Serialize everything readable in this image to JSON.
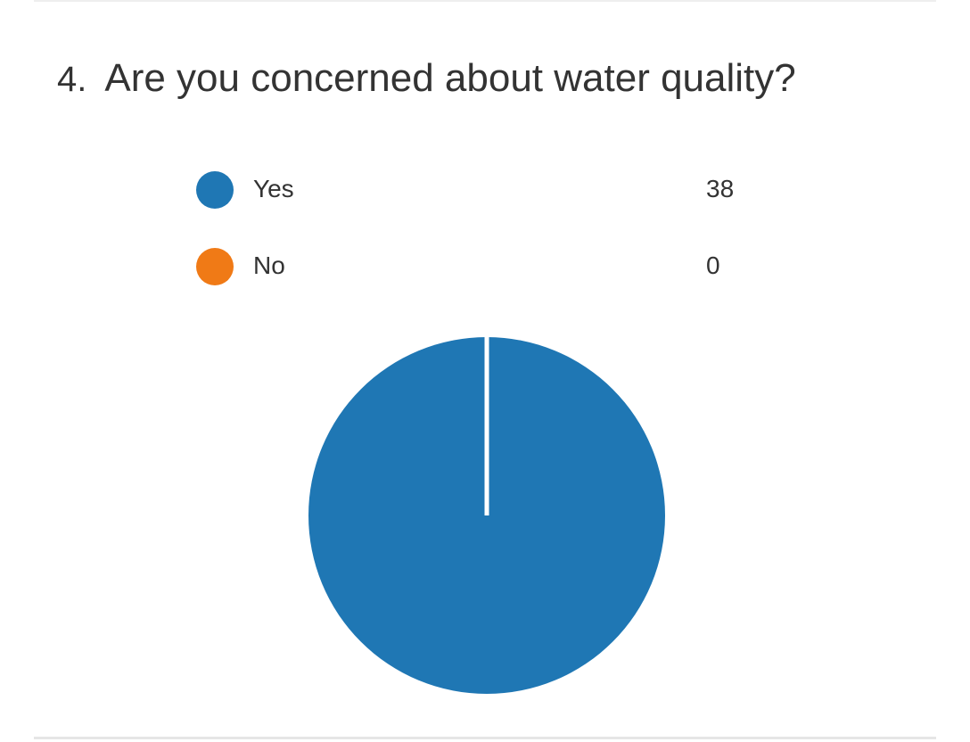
{
  "question": {
    "number": "4.",
    "text": "Are you concerned about water quality?"
  },
  "chart_data": {
    "type": "pie",
    "categories": [
      "Yes",
      "No"
    ],
    "values": [
      38,
      0
    ],
    "colors": [
      "#1f77b4",
      "#f07a16"
    ],
    "legend": "top"
  },
  "legend": [
    {
      "label": "Yes",
      "count": "38",
      "color": "#1f77b4"
    },
    {
      "label": "No",
      "count": "0",
      "color": "#f07a16"
    }
  ]
}
